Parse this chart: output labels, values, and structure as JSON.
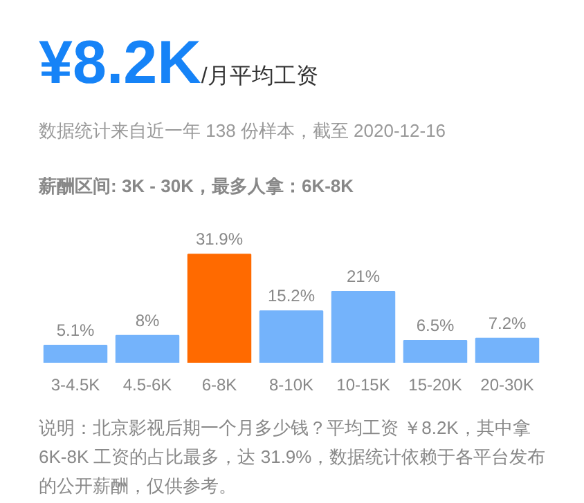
{
  "chart_data": {
    "type": "bar",
    "title": "¥8.2K",
    "subtitle": "/月平均工资",
    "annotations": [
      "数据统计来自近一年 138 份样本，截至 2020-12-16",
      "薪酬区间: 3K - 30K，最多人拿：6K-8K",
      "说明：北京影视后期一个月多少钱？平均工资 ￥8.2K，其中拿 6K-8K 工资的占比最多，达 31.9%，数据统计依赖于各平台发布的公开薪酬，仅供参考。"
    ],
    "categories": [
      "3-4.5K",
      "4.5-6K",
      "6-8K",
      "8-10K",
      "10-15K",
      "15-20K",
      "20-30K"
    ],
    "values": [
      5.1,
      8,
      31.9,
      15.2,
      21,
      6.5,
      7.2
    ],
    "colors": [
      "#74b3fb",
      "#74b3fb",
      "#ff6a00",
      "#74b3fb",
      "#74b3fb",
      "#74b3fb",
      "#74b3fb"
    ],
    "value_labels": [
      "5.1%",
      "8%",
      "31.9%",
      "15.2%",
      "21%",
      "6.5%",
      "7.2%"
    ],
    "grid": false
  }
}
